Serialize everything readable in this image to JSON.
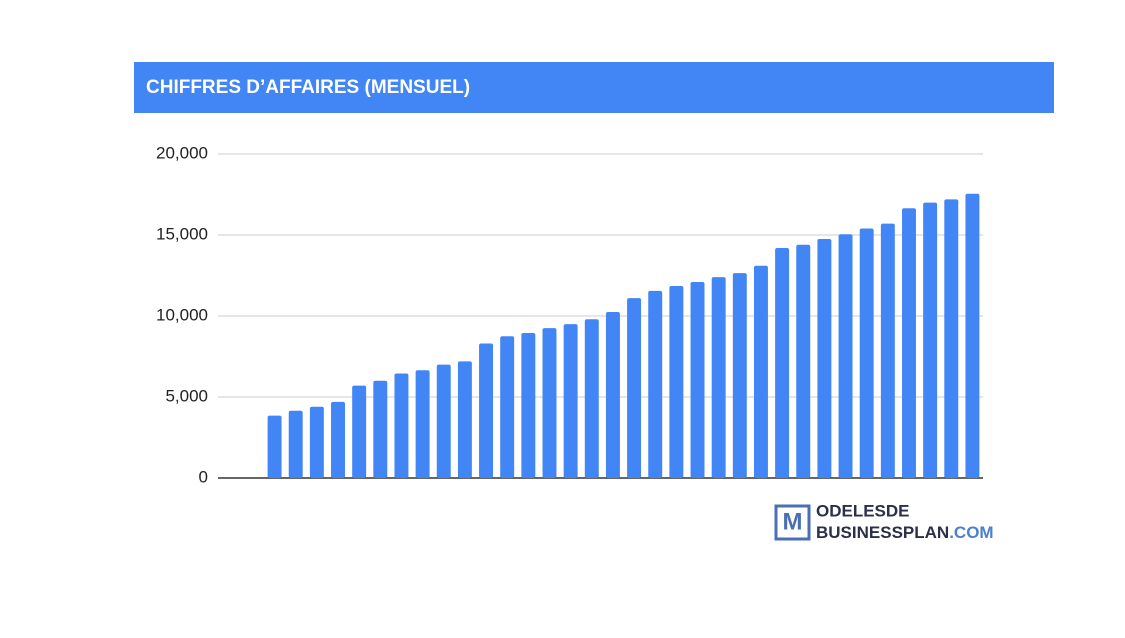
{
  "chart_data": {
    "type": "bar",
    "title": "CHIFFRES D’AFFAIRES (MENSUEL)",
    "categories": [
      null,
      null,
      null,
      null,
      null,
      null,
      null,
      null,
      null,
      null,
      null,
      null,
      null,
      null,
      null,
      null,
      null,
      null,
      null,
      null,
      null,
      null,
      null,
      null,
      null,
      null,
      null,
      null,
      null,
      null,
      null,
      null,
      null,
      null
    ],
    "values": [
      3850,
      4150,
      4400,
      4700,
      5700,
      6000,
      6450,
      6650,
      7000,
      7200,
      8300,
      8750,
      8950,
      9250,
      9500,
      9800,
      10250,
      11100,
      11550,
      11850,
      12100,
      12400,
      12650,
      13100,
      14200,
      14400,
      14750,
      15050,
      15400,
      15700,
      16650,
      17000,
      17200,
      17550
    ],
    "color": "#4285f4",
    "ylim": [
      0,
      20000
    ],
    "yticks": [
      0,
      {
        "value": 5000,
        "label": "5,000"
      },
      {
        "value": 10000,
        "label": "10,000"
      },
      {
        "value": 15000,
        "label": "15,000"
      },
      {
        "value": 20000,
        "label": "20,000"
      }
    ],
    "grid": true
  },
  "logo": {
    "letter": "M",
    "line1": "ODELESDE",
    "line2": "BUSINESSPLAN",
    "line2_suffix": ".COM"
  }
}
